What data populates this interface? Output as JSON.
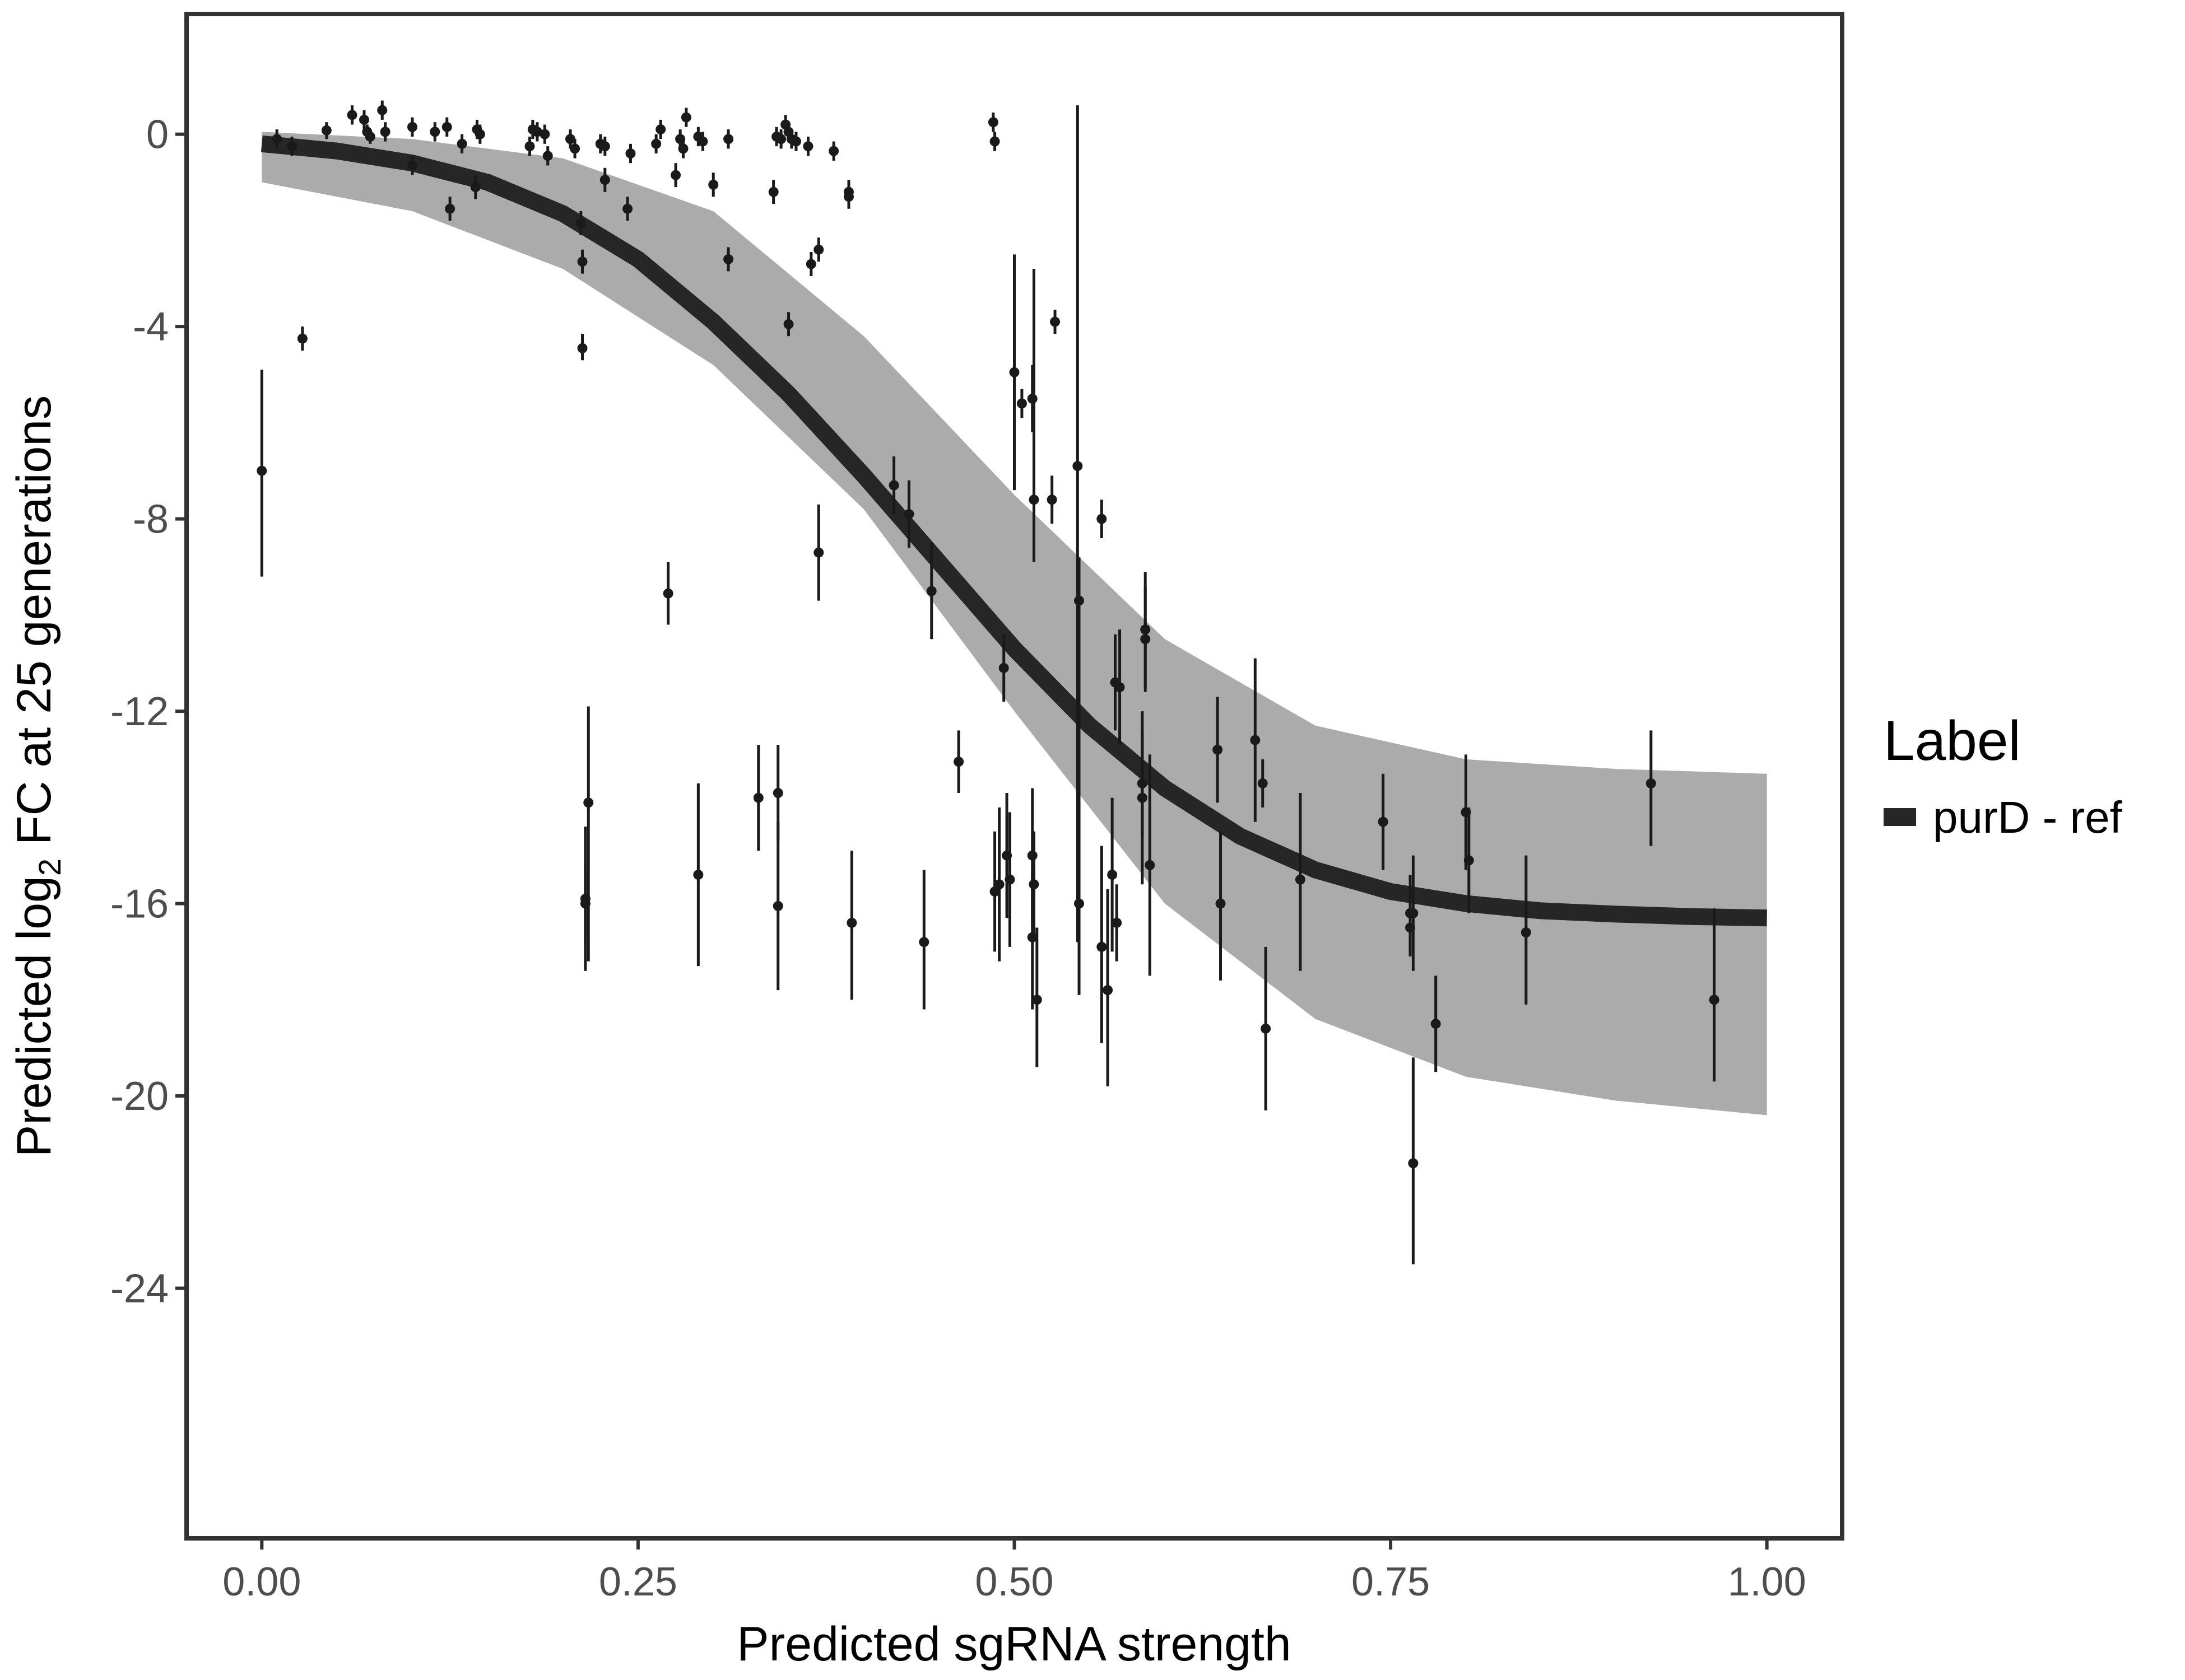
{
  "chart_data": {
    "type": "scatter",
    "xlabel": "Predicted sgRNA strength",
    "ylabel_parts": {
      "pre": "Predicted  log",
      "sub": "2",
      "post": " FC at 25 generations"
    },
    "xlim": [
      -0.05,
      1.05
    ],
    "ylim": [
      -29.2,
      2.5
    ],
    "x_ticks": [
      0,
      0.25,
      0.5,
      0.75,
      1
    ],
    "x_tick_labels": [
      "0.00",
      "0.25",
      "0.50",
      "0.75",
      "1.00"
    ],
    "y_ticks": [
      0,
      -4,
      -8,
      -12,
      -16,
      -20,
      -24
    ],
    "y_tick_labels": [
      "0",
      "-4",
      "-8",
      "-12",
      "-16",
      "-20",
      "-24"
    ],
    "grid": false,
    "legend": {
      "title": "Label",
      "position": "right",
      "entries": [
        {
          "label": "purD - ref",
          "color": "#262626"
        }
      ]
    },
    "fit_curve": {
      "name": "purD - ref",
      "color": "#262626",
      "x": [
        0,
        0.05,
        0.1,
        0.15,
        0.2,
        0.25,
        0.3,
        0.35,
        0.4,
        0.45,
        0.5,
        0.55,
        0.6,
        0.65,
        0.7,
        0.75,
        0.8,
        0.85,
        0.9,
        0.95,
        1.0
      ],
      "y": [
        -0.2,
        -0.35,
        -0.6,
        -1.0,
        -1.65,
        -2.6,
        -3.9,
        -5.4,
        -7.1,
        -8.9,
        -10.7,
        -12.3,
        -13.6,
        -14.6,
        -15.3,
        -15.75,
        -16.0,
        -16.15,
        -16.22,
        -16.27,
        -16.3
      ]
    },
    "posterior_band": {
      "color": "#a6a6a6",
      "x": [
        0,
        0.1,
        0.2,
        0.3,
        0.4,
        0.5,
        0.6,
        0.7,
        0.8,
        0.9,
        1.0
      ],
      "upper": [
        0.05,
        -0.1,
        -0.5,
        -1.6,
        -4.2,
        -7.5,
        -10.5,
        -12.3,
        -13.0,
        -13.2,
        -13.3
      ],
      "lower": [
        -1.0,
        -1.6,
        -2.8,
        -4.8,
        -7.8,
        -12.0,
        -16.0,
        -18.4,
        -19.6,
        -20.1,
        -20.4
      ]
    },
    "points": [
      {
        "x": 0.0,
        "y": -7.0,
        "lo": -9.2,
        "hi": -4.9
      },
      {
        "x": 0.01,
        "y": -0.1,
        "lo": -0.3,
        "hi": 0.1
      },
      {
        "x": 0.02,
        "y": -0.25,
        "lo": -0.45,
        "hi": -0.05
      },
      {
        "x": 0.027,
        "y": -4.25,
        "lo": -4.5,
        "hi": -4.0
      },
      {
        "x": 0.043,
        "y": 0.08,
        "lo": -0.1,
        "hi": 0.25
      },
      {
        "x": 0.06,
        "y": 0.4,
        "lo": 0.2,
        "hi": 0.6
      },
      {
        "x": 0.068,
        "y": 0.3,
        "lo": 0.1,
        "hi": 0.5
      },
      {
        "x": 0.07,
        "y": 0.05,
        "lo": -0.1,
        "hi": 0.2
      },
      {
        "x": 0.072,
        "y": -0.05,
        "lo": -0.2,
        "hi": 0.1
      },
      {
        "x": 0.08,
        "y": 0.5,
        "lo": 0.3,
        "hi": 0.7
      },
      {
        "x": 0.082,
        "y": 0.05,
        "lo": -0.15,
        "hi": 0.25
      },
      {
        "x": 0.1,
        "y": 0.15,
        "lo": -0.05,
        "hi": 0.35
      },
      {
        "x": 0.1,
        "y": -0.65,
        "lo": -0.85,
        "hi": -0.45
      },
      {
        "x": 0.115,
        "y": 0.05,
        "lo": -0.15,
        "hi": 0.25
      },
      {
        "x": 0.123,
        "y": 0.15,
        "lo": -0.05,
        "hi": 0.35
      },
      {
        "x": 0.125,
        "y": -1.55,
        "lo": -1.8,
        "hi": -1.3
      },
      {
        "x": 0.133,
        "y": -0.2,
        "lo": -0.4,
        "hi": 0.0
      },
      {
        "x": 0.142,
        "y": -1.1,
        "lo": -1.35,
        "hi": -0.85
      },
      {
        "x": 0.143,
        "y": 0.1,
        "lo": -0.1,
        "hi": 0.3
      },
      {
        "x": 0.145,
        "y": 0.0,
        "lo": -0.2,
        "hi": 0.2
      },
      {
        "x": 0.178,
        "y": -0.25,
        "lo": -0.45,
        "hi": -0.05
      },
      {
        "x": 0.18,
        "y": 0.1,
        "lo": -0.1,
        "hi": 0.3
      },
      {
        "x": 0.183,
        "y": 0.05,
        "lo": -0.15,
        "hi": 0.25
      },
      {
        "x": 0.188,
        "y": 0.0,
        "lo": -0.2,
        "hi": 0.2
      },
      {
        "x": 0.19,
        "y": -0.45,
        "lo": -0.65,
        "hi": -0.25
      },
      {
        "x": 0.205,
        "y": -0.1,
        "lo": -0.3,
        "hi": 0.1
      },
      {
        "x": 0.208,
        "y": -0.3,
        "lo": -0.5,
        "hi": -0.1
      },
      {
        "x": 0.212,
        "y": -1.85,
        "lo": -2.1,
        "hi": -1.6
      },
      {
        "x": 0.213,
        "y": -2.65,
        "lo": -2.9,
        "hi": -2.4
      },
      {
        "x": 0.213,
        "y": -4.45,
        "lo": -4.7,
        "hi": -4.15
      },
      {
        "x": 0.215,
        "y": -15.9,
        "lo": -17.4,
        "hi": -14.4
      },
      {
        "x": 0.215,
        "y": -16.0,
        "lo": -16.8,
        "hi": -15.2
      },
      {
        "x": 0.217,
        "y": -13.9,
        "lo": -17.2,
        "hi": -11.9
      },
      {
        "x": 0.225,
        "y": -0.2,
        "lo": -0.4,
        "hi": 0.0
      },
      {
        "x": 0.228,
        "y": -0.25,
        "lo": -0.45,
        "hi": -0.05
      },
      {
        "x": 0.228,
        "y": -0.95,
        "lo": -1.2,
        "hi": -0.7
      },
      {
        "x": 0.243,
        "y": -1.55,
        "lo": -1.8,
        "hi": -1.3
      },
      {
        "x": 0.245,
        "y": -0.4,
        "lo": -0.6,
        "hi": -0.2
      },
      {
        "x": 0.262,
        "y": -0.2,
        "lo": -0.4,
        "hi": 0.0
      },
      {
        "x": 0.265,
        "y": 0.1,
        "lo": -0.1,
        "hi": 0.3
      },
      {
        "x": 0.27,
        "y": -9.55,
        "lo": -10.2,
        "hi": -8.9
      },
      {
        "x": 0.275,
        "y": -0.85,
        "lo": -1.1,
        "hi": -0.6
      },
      {
        "x": 0.278,
        "y": -0.1,
        "lo": -0.3,
        "hi": 0.1
      },
      {
        "x": 0.28,
        "y": -0.3,
        "lo": -0.5,
        "hi": -0.1
      },
      {
        "x": 0.282,
        "y": 0.35,
        "lo": 0.15,
        "hi": 0.55
      },
      {
        "x": 0.29,
        "y": -15.4,
        "lo": -17.3,
        "hi": -13.5
      },
      {
        "x": 0.29,
        "y": -0.05,
        "lo": -0.25,
        "hi": 0.15
      },
      {
        "x": 0.293,
        "y": -0.15,
        "lo": -0.35,
        "hi": 0.05
      },
      {
        "x": 0.3,
        "y": -1.05,
        "lo": -1.3,
        "hi": -0.8
      },
      {
        "x": 0.31,
        "y": -2.6,
        "lo": -2.85,
        "hi": -2.35
      },
      {
        "x": 0.31,
        "y": -0.1,
        "lo": -0.3,
        "hi": 0.1
      },
      {
        "x": 0.33,
        "y": -13.8,
        "lo": -14.9,
        "hi": -12.7
      },
      {
        "x": 0.34,
        "y": -1.2,
        "lo": -1.45,
        "hi": -0.95
      },
      {
        "x": 0.342,
        "y": -0.05,
        "lo": -0.25,
        "hi": 0.15
      },
      {
        "x": 0.343,
        "y": -13.7,
        "lo": -14.7,
        "hi": -12.7
      },
      {
        "x": 0.343,
        "y": -16.05,
        "lo": -17.8,
        "hi": -14.3
      },
      {
        "x": 0.345,
        "y": -0.1,
        "lo": -0.3,
        "hi": 0.1
      },
      {
        "x": 0.348,
        "y": 0.2,
        "lo": 0.0,
        "hi": 0.4
      },
      {
        "x": 0.35,
        "y": 0.05,
        "lo": -0.15,
        "hi": 0.25
      },
      {
        "x": 0.35,
        "y": -3.95,
        "lo": -4.2,
        "hi": -3.7
      },
      {
        "x": 0.352,
        "y": -0.1,
        "lo": -0.3,
        "hi": 0.1
      },
      {
        "x": 0.355,
        "y": -0.15,
        "lo": -0.35,
        "hi": 0.05
      },
      {
        "x": 0.363,
        "y": -0.25,
        "lo": -0.45,
        "hi": -0.05
      },
      {
        "x": 0.365,
        "y": -2.7,
        "lo": -2.95,
        "hi": -2.45
      },
      {
        "x": 0.37,
        "y": -2.4,
        "lo": -2.65,
        "hi": -2.15
      },
      {
        "x": 0.37,
        "y": -8.7,
        "lo": -9.7,
        "hi": -7.7
      },
      {
        "x": 0.38,
        "y": -0.35,
        "lo": -0.55,
        "hi": -0.15
      },
      {
        "x": 0.39,
        "y": -1.2,
        "lo": -1.45,
        "hi": -0.95
      },
      {
        "x": 0.39,
        "y": -1.3,
        "lo": -1.55,
        "hi": -1.05
      },
      {
        "x": 0.392,
        "y": -16.4,
        "lo": -18.0,
        "hi": -14.9
      },
      {
        "x": 0.42,
        "y": -7.3,
        "lo": -7.9,
        "hi": -6.7
      },
      {
        "x": 0.43,
        "y": -7.9,
        "lo": -8.6,
        "hi": -7.2
      },
      {
        "x": 0.44,
        "y": -16.8,
        "lo": -18.2,
        "hi": -15.3
      },
      {
        "x": 0.445,
        "y": -9.5,
        "lo": -10.5,
        "hi": -8.5
      },
      {
        "x": 0.463,
        "y": -13.05,
        "lo": -13.7,
        "hi": -12.4
      },
      {
        "x": 0.486,
        "y": 0.25,
        "lo": 0.05,
        "hi": 0.45
      },
      {
        "x": 0.487,
        "y": -0.15,
        "lo": -0.35,
        "hi": 0.05
      },
      {
        "x": 0.487,
        "y": -15.75,
        "lo": -17.0,
        "hi": -14.5
      },
      {
        "x": 0.49,
        "y": -15.6,
        "lo": -17.2,
        "hi": -14.0
      },
      {
        "x": 0.493,
        "y": -11.1,
        "lo": -11.8,
        "hi": -10.4
      },
      {
        "x": 0.495,
        "y": -15.0,
        "lo": -16.3,
        "hi": -13.7
      },
      {
        "x": 0.497,
        "y": -15.5,
        "lo": -16.9,
        "hi": -14.1
      },
      {
        "x": 0.5,
        "y": -4.95,
        "lo": -7.4,
        "hi": -2.5
      },
      {
        "x": 0.505,
        "y": -5.6,
        "lo": -5.9,
        "hi": -5.3
      },
      {
        "x": 0.512,
        "y": -15.0,
        "lo": -16.4,
        "hi": -13.6
      },
      {
        "x": 0.512,
        "y": -5.5,
        "lo": -6.2,
        "hi": -4.8
      },
      {
        "x": 0.512,
        "y": -16.7,
        "lo": -18.2,
        "hi": -15.3
      },
      {
        "x": 0.513,
        "y": -7.6,
        "lo": -8.9,
        "hi": -2.8
      },
      {
        "x": 0.513,
        "y": -15.6,
        "lo": -16.7,
        "hi": -14.5
      },
      {
        "x": 0.515,
        "y": -18.0,
        "lo": -19.4,
        "hi": -16.5
      },
      {
        "x": 0.525,
        "y": -7.6,
        "lo": -8.1,
        "hi": -7.1
      },
      {
        "x": 0.527,
        "y": -3.9,
        "lo": -4.15,
        "hi": -3.65
      },
      {
        "x": 0.542,
        "y": -6.9,
        "lo": -16.8,
        "hi": 0.6
      },
      {
        "x": 0.543,
        "y": -9.7,
        "lo": -16.9,
        "hi": -8.8
      },
      {
        "x": 0.543,
        "y": -16.0,
        "lo": -17.9,
        "hi": -14.6
      },
      {
        "x": 0.558,
        "y": -8.0,
        "lo": -8.4,
        "hi": -7.6
      },
      {
        "x": 0.558,
        "y": -16.9,
        "lo": -18.9,
        "hi": -14.8
      },
      {
        "x": 0.562,
        "y": -17.8,
        "lo": -19.8,
        "hi": -15.7
      },
      {
        "x": 0.565,
        "y": -15.4,
        "lo": -17.0,
        "hi": -13.8
      },
      {
        "x": 0.567,
        "y": -11.4,
        "lo": -12.4,
        "hi": -10.4
      },
      {
        "x": 0.568,
        "y": -16.4,
        "lo": -17.2,
        "hi": -15.6
      },
      {
        "x": 0.57,
        "y": -11.5,
        "lo": -12.7,
        "hi": -10.3
      },
      {
        "x": 0.585,
        "y": -13.5,
        "lo": -14.6,
        "hi": -12.4
      },
      {
        "x": 0.585,
        "y": -13.8,
        "lo": -15.6,
        "hi": -12.0
      },
      {
        "x": 0.587,
        "y": -10.3,
        "lo": -11.5,
        "hi": -9.1
      },
      {
        "x": 0.587,
        "y": -10.5,
        "lo": -11.6,
        "hi": -9.4
      },
      {
        "x": 0.59,
        "y": -15.2,
        "lo": -17.5,
        "hi": -12.9
      },
      {
        "x": 0.635,
        "y": -12.8,
        "lo": -13.9,
        "hi": -11.7
      },
      {
        "x": 0.637,
        "y": -16.0,
        "lo": -17.6,
        "hi": -14.5
      },
      {
        "x": 0.66,
        "y": -12.6,
        "lo": -14.3,
        "hi": -10.9
      },
      {
        "x": 0.665,
        "y": -13.5,
        "lo": -14.0,
        "hi": -13.0
      },
      {
        "x": 0.667,
        "y": -18.6,
        "lo": -20.3,
        "hi": -16.9
      },
      {
        "x": 0.69,
        "y": -15.5,
        "lo": -17.4,
        "hi": -13.7
      },
      {
        "x": 0.745,
        "y": -14.3,
        "lo": -15.3,
        "hi": -13.3
      },
      {
        "x": 0.763,
        "y": -16.2,
        "lo": -17.0,
        "hi": -15.4
      },
      {
        "x": 0.763,
        "y": -16.5,
        "lo": -17.1,
        "hi": -15.9
      },
      {
        "x": 0.765,
        "y": -21.4,
        "lo": -23.5,
        "hi": -19.2
      },
      {
        "x": 0.765,
        "y": -16.2,
        "lo": -17.4,
        "hi": -15.0
      },
      {
        "x": 0.78,
        "y": -18.5,
        "lo": -19.5,
        "hi": -17.5
      },
      {
        "x": 0.8,
        "y": -14.1,
        "lo": -15.3,
        "hi": -12.9
      },
      {
        "x": 0.802,
        "y": -15.1,
        "lo": -16.2,
        "hi": -14.0
      },
      {
        "x": 0.84,
        "y": -16.6,
        "lo": -18.1,
        "hi": -15.0
      },
      {
        "x": 0.923,
        "y": -13.5,
        "lo": -14.8,
        "hi": -12.4
      },
      {
        "x": 0.965,
        "y": -18.0,
        "lo": -19.7,
        "hi": -16.1
      }
    ]
  }
}
